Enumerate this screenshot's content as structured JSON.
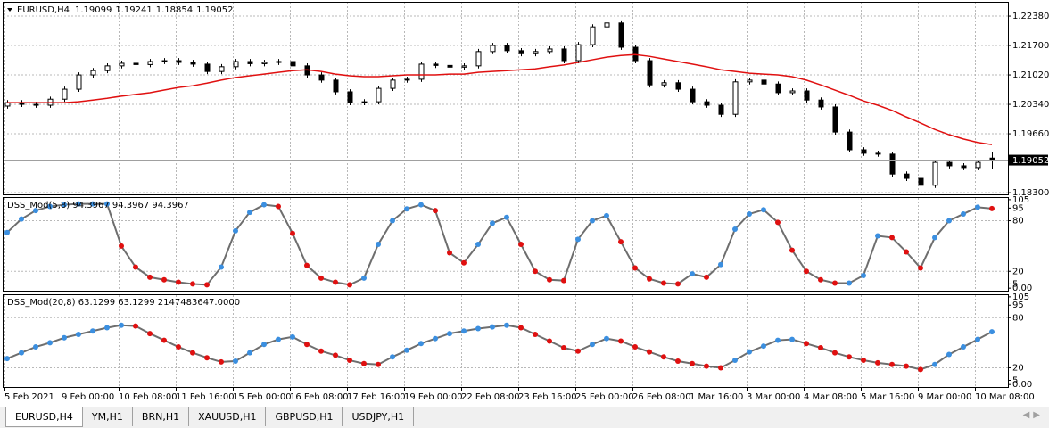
{
  "chart_data": [
    {
      "type": "candlestick",
      "title": "EURUSD,H4",
      "open": [
        1.203,
        1.2038,
        1.2034,
        1.2032,
        1.2046,
        1.2069,
        1.2102,
        1.2112,
        1.2123,
        1.2129,
        1.2126,
        1.2133,
        1.2135,
        1.2131,
        1.2127,
        1.211,
        1.2121,
        1.2133,
        1.2128,
        1.2131,
        1.2133,
        1.2123,
        1.2102,
        1.209,
        1.2063,
        1.2038,
        1.204,
        1.2071,
        1.209,
        1.2092,
        1.2127,
        1.2124,
        1.212,
        1.2123,
        1.2156,
        1.217,
        1.2158,
        1.2151,
        1.2156,
        1.2162,
        1.2135,
        1.2172,
        1.2213,
        1.2222,
        1.2166,
        1.2135,
        1.2079,
        1.2084,
        1.2069,
        1.204,
        1.2032,
        1.2011,
        1.2086,
        1.209,
        1.2081,
        1.2061,
        1.2065,
        1.2044,
        1.2028,
        1.197,
        1.1929,
        1.1921,
        1.1919,
        1.1873,
        1.1863,
        1.1847,
        1.19,
        1.1892,
        1.1888,
        1.19099
      ],
      "high": [
        1.2044,
        1.2044,
        1.204,
        1.2052,
        1.2075,
        1.2108,
        1.2118,
        1.2129,
        1.2135,
        1.2135,
        1.2139,
        1.2141,
        1.2141,
        1.2137,
        1.2133,
        1.2127,
        1.2139,
        1.2139,
        1.2137,
        1.2139,
        1.2139,
        1.2129,
        1.2108,
        1.2096,
        1.2069,
        1.2046,
        1.2077,
        1.2096,
        1.2098,
        1.2133,
        1.2133,
        1.213,
        1.2129,
        1.2162,
        1.2176,
        1.2176,
        1.2164,
        1.2162,
        1.2168,
        1.2168,
        1.2178,
        1.2219,
        1.2242,
        1.2228,
        1.2172,
        1.2141,
        1.209,
        1.209,
        1.2075,
        1.2046,
        1.2038,
        1.2092,
        1.2096,
        1.2096,
        1.2087,
        1.2071,
        1.2071,
        1.205,
        1.2034,
        1.1976,
        1.1935,
        1.1927,
        1.1925,
        1.1879,
        1.1869,
        1.1906,
        1.1906,
        1.1898,
        1.1906,
        1.19241
      ],
      "low": [
        1.2024,
        1.2028,
        1.2026,
        1.2026,
        1.204,
        1.2063,
        1.2096,
        1.2106,
        1.2117,
        1.212,
        1.212,
        1.2127,
        1.2125,
        1.2121,
        1.2104,
        1.2104,
        1.2115,
        1.2122,
        1.2122,
        1.2125,
        1.2117,
        1.2096,
        1.2084,
        1.2057,
        1.2032,
        1.2032,
        1.2034,
        1.2065,
        1.2084,
        1.2086,
        1.2118,
        1.2114,
        1.2114,
        1.2117,
        1.215,
        1.2152,
        1.2145,
        1.2145,
        1.215,
        1.2129,
        1.2129,
        1.2166,
        1.2207,
        1.216,
        1.2129,
        1.2073,
        1.2073,
        1.2063,
        1.2034,
        1.2026,
        1.2005,
        1.2005,
        1.208,
        1.2075,
        1.2055,
        1.2055,
        1.2038,
        1.2022,
        1.1964,
        1.1923,
        1.1915,
        1.1913,
        1.1867,
        1.1857,
        1.1841,
        1.1841,
        1.1886,
        1.1882,
        1.1882,
        1.18854
      ],
      "close": [
        1.2038,
        1.2034,
        1.2032,
        1.2046,
        1.2069,
        1.2102,
        1.2112,
        1.2123,
        1.2129,
        1.2126,
        1.2133,
        1.2135,
        1.2131,
        1.2127,
        1.211,
        1.2121,
        1.2133,
        1.2128,
        1.2131,
        1.2133,
        1.2123,
        1.2102,
        1.209,
        1.2063,
        1.2038,
        1.204,
        1.2071,
        1.209,
        1.2092,
        1.2127,
        1.2124,
        1.212,
        1.2123,
        1.2156,
        1.217,
        1.2158,
        1.2151,
        1.2156,
        1.2162,
        1.2135,
        1.2172,
        1.2213,
        1.2222,
        1.2166,
        1.2135,
        1.2079,
        1.2084,
        1.2069,
        1.204,
        1.2032,
        1.2011,
        1.2086,
        1.209,
        1.2081,
        1.2061,
        1.2065,
        1.2044,
        1.2028,
        1.197,
        1.1929,
        1.1921,
        1.1919,
        1.1873,
        1.1863,
        1.1847,
        1.19,
        1.1892,
        1.1888,
        1.19,
        1.19052
      ],
      "ma": {
        "color": "#e01010",
        "values": [
          1.2038,
          1.2038,
          1.2038,
          1.2038,
          1.2038,
          1.204,
          1.2044,
          1.2048,
          1.2053,
          1.2057,
          1.2061,
          1.2067,
          1.2073,
          1.2077,
          1.2083,
          1.209,
          1.2096,
          1.21,
          1.2104,
          1.2108,
          1.2112,
          1.2114,
          1.211,
          1.2104,
          1.21,
          1.2098,
          1.2098,
          1.21,
          1.2102,
          1.2102,
          1.2102,
          1.2104,
          1.2104,
          1.2108,
          1.211,
          1.2112,
          1.2114,
          1.2116,
          1.2121,
          1.2125,
          1.2131,
          1.2137,
          1.2143,
          1.2147,
          1.2149,
          1.2145,
          1.2139,
          1.2133,
          1.2127,
          1.2121,
          1.2114,
          1.211,
          1.2106,
          1.2104,
          1.2102,
          1.2098,
          1.209,
          1.2079,
          1.2067,
          1.2055,
          1.2042,
          1.2032,
          1.202,
          1.2005,
          1.1991,
          1.1976,
          1.1964,
          1.1954,
          1.1946,
          1.1941
        ]
      },
      "up_color": "#ffffff",
      "down_color": "#000000",
      "ylim": [
        1.1826,
        1.2269
      ],
      "yticks": [
        {
          "value": 1.2238,
          "label": "1.22380"
        },
        {
          "value": 1.217,
          "label": "1.21700"
        },
        {
          "value": 1.2102,
          "label": "1.21020"
        },
        {
          "value": 1.2034,
          "label": "1.20340"
        },
        {
          "value": 1.1966,
          "label": "1.19660"
        },
        {
          "value": 1.183,
          "label": "1.18300"
        }
      ],
      "grid": true,
      "time_labels": [
        "5 Feb 2021",
        "9 Feb 00:00",
        "10 Feb 08:00",
        "11 Feb 16:00",
        "15 Feb 00:00",
        "16 Feb 08:00",
        "17 Feb 16:00",
        "19 Feb 00:00",
        "22 Feb 08:00",
        "23 Feb 16:00",
        "25 Feb 00:00",
        "26 Feb 08:00",
        "1 Mar 16:00",
        "3 Mar 00:00",
        "4 Mar 08:00",
        "5 Mar 16:00",
        "9 Mar 00:00",
        "10 Mar 08:00"
      ]
    },
    {
      "type": "line",
      "title": "DSS_Mod(5,8) 94.3967 94.3967 94.3967",
      "values": [
        66,
        82,
        92,
        97,
        99,
        100,
        100,
        100,
        50,
        25,
        13,
        10,
        7,
        5,
        4,
        25,
        68,
        90,
        99,
        97,
        65,
        27,
        12,
        7,
        4,
        12,
        52,
        80,
        94,
        99,
        92,
        42,
        30,
        52,
        77,
        84,
        52,
        20,
        10,
        9,
        58,
        80,
        86,
        55,
        24,
        11,
        6,
        5,
        17,
        13,
        28,
        70,
        88,
        93,
        78,
        45,
        20,
        10,
        6,
        6,
        15,
        62,
        60,
        43,
        24,
        60,
        80,
        88,
        96,
        94.3967
      ],
      "line_color": "#6e6e6e",
      "up_color": "#3b8fe0",
      "down_color": "#e01010",
      "ylim": [
        -3,
        107
      ],
      "yticks": [
        105,
        95,
        80,
        20,
        5,
        {
          "value": 0,
          "label": "0.00"
        }
      ],
      "levels": [
        80,
        20
      ]
    },
    {
      "type": "line",
      "title": "DSS_Mod(20,8) 63.1299 63.1299 2147483647.0000",
      "values": [
        31,
        38,
        45,
        50,
        56,
        60,
        64,
        68,
        71,
        70,
        61,
        53,
        45,
        38,
        32,
        27,
        28,
        38,
        48,
        54,
        57,
        48,
        40,
        35,
        29,
        25,
        24,
        33,
        41,
        49,
        55,
        61,
        64,
        67,
        69,
        71,
        68,
        60,
        52,
        44,
        40,
        48,
        55,
        52,
        45,
        39,
        33,
        28,
        25,
        22,
        20,
        29,
        39,
        46,
        53,
        54,
        49,
        44,
        38,
        33,
        29,
        26,
        24,
        22,
        18,
        24,
        36,
        45,
        54,
        63.1299
      ],
      "line_color": "#6e6e6e",
      "up_color": "#3b8fe0",
      "down_color": "#e01010",
      "ylim": [
        -3,
        107
      ],
      "yticks": [
        105,
        95,
        80,
        20,
        5,
        {
          "value": 0,
          "label": "0.00"
        }
      ],
      "levels": [
        80,
        20
      ]
    }
  ],
  "tabs": [
    "EURUSD,H4",
    "YM,H1",
    "BRN,H1",
    "XAUUSD,H1",
    "GBPUSD,H1",
    "USDJPY,H1"
  ]
}
